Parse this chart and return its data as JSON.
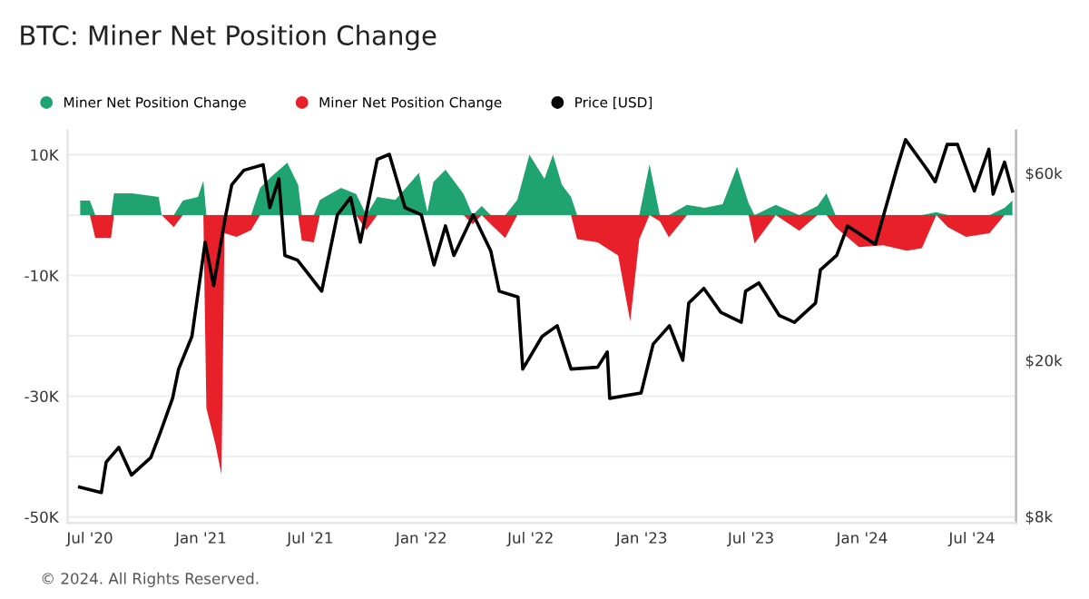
{
  "chart_data": {
    "type": "area",
    "title": "BTC: Miner Net Position Change",
    "x": [
      "2020-06-15",
      "2020-07-01",
      "2020-07-10",
      "2020-08-05",
      "2020-08-10",
      "2020-09-09",
      "2020-10-23",
      "2020-10-28",
      "2020-11-17",
      "2020-12-02",
      "2020-12-27",
      "2021-01-05",
      "2021-01-10",
      "2021-01-25",
      "2021-02-04",
      "2021-02-09",
      "2021-03-01",
      "2021-03-25",
      "2021-04-09",
      "2021-04-29",
      "2021-05-24",
      "2021-06-11",
      "2021-06-17",
      "2021-07-07",
      "2021-07-17",
      "2021-08-21",
      "2021-09-15",
      "2021-10-02",
      "2021-10-20",
      "2021-11-19",
      "2021-12-28",
      "2022-01-11",
      "2022-01-21",
      "2022-02-10",
      "2022-03-12",
      "2022-03-27",
      "2022-04-11",
      "2022-04-26",
      "2022-05-20",
      "2022-06-09",
      "2022-06-29",
      "2022-07-24",
      "2022-08-07",
      "2022-08-22",
      "2022-09-06",
      "2022-09-16",
      "2022-10-20",
      "2022-11-23",
      "2022-12-13",
      "2022-12-28",
      "2023-01-14",
      "2023-01-31",
      "2023-02-15",
      "2023-03-17",
      "2023-04-15",
      "2023-05-15",
      "2023-06-08",
      "2023-06-27",
      "2023-07-07",
      "2023-08-11",
      "2023-09-19",
      "2023-10-19",
      "2023-11-03",
      "2023-11-18",
      "2023-12-27",
      "2024-02-05",
      "2024-03-15",
      "2024-04-09",
      "2024-05-03",
      "2024-05-22",
      "2024-06-21",
      "2024-07-30",
      "2024-08-24",
      "2024-09-06"
    ],
    "series": [
      {
        "name": "Miner Net Position Change",
        "color": "#1fa371",
        "values": [
          2400,
          2400,
          0,
          0,
          3600,
          3600,
          3000,
          0,
          0,
          2400,
          3000,
          5700,
          0,
          0,
          0,
          0,
          0,
          0,
          4500,
          6500,
          8700,
          5000,
          0,
          0,
          2500,
          4500,
          3500,
          0,
          3000,
          2500,
          7000,
          500,
          5500,
          7500,
          3500,
          0,
          1500,
          0,
          0,
          2500,
          10000,
          6000,
          10000,
          5000,
          3000,
          0,
          0,
          0,
          0,
          0,
          8400,
          0,
          0,
          1700,
          1200,
          1800,
          8000,
          2000,
          0,
          1700,
          0,
          1500,
          3600,
          0,
          0,
          0,
          0,
          0,
          500,
          0,
          0,
          0,
          1200,
          2400
        ]
      },
      {
        "name": "Miner Net Position Change",
        "color": "#e8202a",
        "values": [
          0,
          0,
          -3800,
          -3800,
          0,
          0,
          0,
          0,
          -2000,
          0,
          0,
          0,
          -32000,
          -38000,
          -43000,
          -3000,
          -3600,
          -2500,
          0,
          0,
          0,
          0,
          -4200,
          -4500,
          0,
          0,
          0,
          -2500,
          0,
          0,
          0,
          0,
          0,
          0,
          0,
          -1500,
          0,
          -1500,
          -3800,
          0,
          0,
          0,
          0,
          0,
          0,
          -4000,
          -4500,
          -6700,
          -17600,
          -4000,
          0,
          -1000,
          -3700,
          0,
          0,
          0,
          0,
          0,
          -4700,
          0,
          -2600,
          0,
          0,
          -2000,
          -5300,
          -5000,
          -5900,
          -5500,
          0,
          -2000,
          -3600,
          -3000,
          0,
          0
        ]
      },
      {
        "name": "Price [USD]",
        "type": "line",
        "axis": "y2",
        "color": "#000000",
        "x": [
          "2020-06-14",
          "2020-07-20",
          "2020-07-28",
          "2020-08-18",
          "2020-09-08",
          "2020-10-10",
          "2020-10-25",
          "2020-11-15",
          "2020-11-25",
          "2020-12-17",
          "2021-01-08",
          "2021-01-22",
          "2021-02-10",
          "2021-02-21",
          "2021-03-13",
          "2021-04-14",
          "2021-04-25",
          "2021-05-10",
          "2021-05-20",
          "2021-06-10",
          "2021-07-20",
          "2021-08-15",
          "2021-09-06",
          "2021-09-22",
          "2021-10-20",
          "2021-11-09",
          "2021-12-05",
          "2022-01-01",
          "2022-01-22",
          "2022-02-10",
          "2022-02-24",
          "2022-03-28",
          "2022-04-26",
          "2022-05-10",
          "2022-06-10",
          "2022-06-18",
          "2022-07-20",
          "2022-08-14",
          "2022-09-06",
          "2022-10-20",
          "2022-11-05",
          "2022-11-09",
          "2022-12-31",
          "2023-01-20",
          "2023-02-16",
          "2023-03-10",
          "2023-03-20",
          "2023-04-14",
          "2023-05-12",
          "2023-06-15",
          "2023-06-22",
          "2023-07-14",
          "2023-08-17",
          "2023-09-11",
          "2023-10-16",
          "2023-10-24",
          "2023-11-20",
          "2023-12-08",
          "2024-01-23",
          "2024-02-28",
          "2024-03-13",
          "2024-04-17",
          "2024-05-01",
          "2024-05-21",
          "2024-06-07",
          "2024-07-05",
          "2024-07-29",
          "2024-08-05",
          "2024-08-24",
          "2024-09-06"
        ],
        "values": [
          9500,
          9200,
          11000,
          12000,
          10200,
          11300,
          13000,
          16000,
          19000,
          23000,
          40000,
          31000,
          46000,
          56000,
          61000,
          63000,
          49000,
          58000,
          37000,
          36000,
          30000,
          47000,
          52000,
          40000,
          65000,
          67000,
          49000,
          47000,
          35000,
          44000,
          37000,
          47000,
          38000,
          30000,
          29000,
          19000,
          23000,
          24500,
          19000,
          19200,
          21000,
          16000,
          16500,
          22000,
          24500,
          20000,
          28000,
          30500,
          26500,
          25000,
          30000,
          31500,
          26000,
          25000,
          28000,
          34000,
          37000,
          44000,
          39500,
          62000,
          73000,
          61500,
          57000,
          71000,
          71000,
          54000,
          69000,
          53000,
          64000,
          54000
        ]
      }
    ],
    "xlim": [
      "2020-05-25",
      "2024-09-12"
    ],
    "xticks": [
      {
        "value": "2020-07-01",
        "label": "Jul '20"
      },
      {
        "value": "2021-01-01",
        "label": "Jan '21"
      },
      {
        "value": "2021-07-01",
        "label": "Jul '21"
      },
      {
        "value": "2022-01-01",
        "label": "Jan '22"
      },
      {
        "value": "2022-07-01",
        "label": "Jul '22"
      },
      {
        "value": "2023-01-01",
        "label": "Jan '23"
      },
      {
        "value": "2023-07-01",
        "label": "Jul '23"
      },
      {
        "value": "2024-01-01",
        "label": "Jan '24"
      },
      {
        "value": "2024-07-01",
        "label": "Jul '24"
      }
    ],
    "ylim": [
      -51000,
      14000
    ],
    "yticks": [
      {
        "value": 10000,
        "label": "10K"
      },
      {
        "value": 0,
        "label": null
      },
      {
        "value": -10000,
        "label": "-10K"
      },
      {
        "value": -20000,
        "label": null
      },
      {
        "value": -30000,
        "label": "-30K"
      },
      {
        "value": -40000,
        "label": null
      },
      {
        "value": -50000,
        "label": "-50K"
      }
    ],
    "log": "y2",
    "y2lim": [
      7700,
      77000
    ],
    "y2ticks": [
      {
        "value": 60000,
        "label": "$60k"
      },
      {
        "value": 20000,
        "label": "$20k"
      },
      {
        "value": 8000,
        "label": "$8k"
      }
    ],
    "grid": "y",
    "legend": "top left",
    "annotations": [
      "© 2024. All Rights Reserved."
    ]
  }
}
